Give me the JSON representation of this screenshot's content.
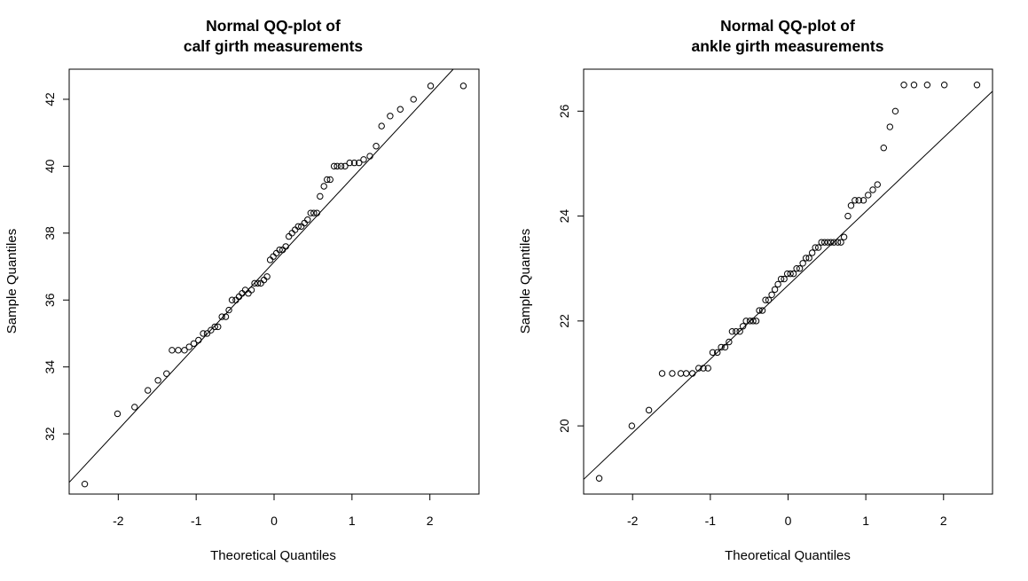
{
  "chart_data": [
    {
      "type": "scatter",
      "title_line1": "Normal QQ-plot of",
      "title_line2": "calf girth measurements",
      "xlabel": "Theoretical Quantiles",
      "ylabel": "Sample Quantiles",
      "xlim": [
        -2.63,
        2.63
      ],
      "ylim": [
        30.2,
        42.9
      ],
      "x_ticks": [
        -2,
        -1,
        0,
        1,
        2
      ],
      "y_ticks": [
        32,
        34,
        36,
        38,
        40,
        42
      ],
      "reference_line": {
        "x": [
          -2.63,
          2.3
        ],
        "y": [
          30.55,
          42.9
        ]
      },
      "grid": false,
      "legend": "none",
      "points": {
        "x": [
          -2.43,
          -2.01,
          -1.79,
          -1.62,
          -1.49,
          -1.38,
          -1.31,
          -1.23,
          -1.15,
          -1.09,
          -1.03,
          -0.97,
          -0.91,
          -0.86,
          -0.81,
          -0.76,
          -0.72,
          -0.67,
          -0.62,
          -0.58,
          -0.54,
          -0.49,
          -0.45,
          -0.41,
          -0.37,
          -0.33,
          -0.29,
          -0.25,
          -0.21,
          -0.17,
          -0.13,
          -0.09,
          -0.05,
          -0.01,
          0.03,
          0.07,
          0.11,
          0.15,
          0.19,
          0.23,
          0.27,
          0.31,
          0.35,
          0.39,
          0.43,
          0.47,
          0.51,
          0.55,
          0.59,
          0.64,
          0.68,
          0.72,
          0.77,
          0.81,
          0.86,
          0.91,
          0.97,
          1.03,
          1.09,
          1.15,
          1.23,
          1.31,
          1.38,
          1.49,
          1.62,
          1.79,
          2.01,
          2.43
        ],
        "y": [
          30.5,
          32.6,
          32.8,
          33.3,
          33.6,
          33.8,
          34.5,
          34.5,
          34.5,
          34.6,
          34.7,
          34.8,
          35.0,
          35.0,
          35.1,
          35.2,
          35.2,
          35.5,
          35.5,
          35.7,
          36.0,
          36.0,
          36.1,
          36.2,
          36.3,
          36.2,
          36.3,
          36.5,
          36.5,
          36.5,
          36.6,
          36.7,
          37.2,
          37.3,
          37.4,
          37.5,
          37.5,
          37.6,
          37.9,
          38.0,
          38.1,
          38.2,
          38.2,
          38.3,
          38.4,
          38.6,
          38.6,
          38.6,
          39.1,
          39.4,
          39.6,
          39.6,
          40.0,
          40.0,
          40.0,
          40.0,
          40.1,
          40.1,
          40.1,
          40.2,
          40.3,
          40.6,
          41.2,
          41.5,
          41.7,
          42.0,
          42.4,
          42.4
        ]
      }
    },
    {
      "type": "scatter",
      "title_line1": "Normal QQ-plot of",
      "title_line2": "ankle girth measurements",
      "xlabel": "Theoretical Quantiles",
      "ylabel": "Sample Quantiles",
      "xlim": [
        -2.63,
        2.63
      ],
      "ylim": [
        18.7,
        26.8
      ],
      "x_ticks": [
        -2,
        -1,
        0,
        1,
        2
      ],
      "y_ticks": [
        20,
        22,
        24,
        26
      ],
      "reference_line": {
        "x": [
          -2.63,
          2.63
        ],
        "y": [
          18.98,
          26.38
        ]
      },
      "grid": false,
      "legend": "none",
      "points": {
        "x": [
          -2.43,
          -2.01,
          -1.79,
          -1.62,
          -1.49,
          -1.38,
          -1.31,
          -1.23,
          -1.15,
          -1.09,
          -1.03,
          -0.97,
          -0.91,
          -0.86,
          -0.81,
          -0.76,
          -0.72,
          -0.67,
          -0.62,
          -0.58,
          -0.54,
          -0.49,
          -0.45,
          -0.41,
          -0.37,
          -0.33,
          -0.29,
          -0.25,
          -0.21,
          -0.17,
          -0.13,
          -0.09,
          -0.05,
          -0.01,
          0.03,
          0.07,
          0.11,
          0.15,
          0.19,
          0.23,
          0.27,
          0.31,
          0.35,
          0.39,
          0.43,
          0.47,
          0.51,
          0.55,
          0.59,
          0.64,
          0.68,
          0.72,
          0.77,
          0.81,
          0.86,
          0.91,
          0.97,
          1.03,
          1.09,
          1.15,
          1.23,
          1.31,
          1.38,
          1.49,
          1.62,
          1.79,
          2.01,
          2.43
        ],
        "y": [
          19.0,
          20.0,
          20.3,
          21.0,
          21.0,
          21.0,
          21.0,
          21.0,
          21.1,
          21.1,
          21.1,
          21.4,
          21.4,
          21.5,
          21.5,
          21.6,
          21.8,
          21.8,
          21.8,
          21.9,
          22.0,
          22.0,
          22.0,
          22.0,
          22.2,
          22.2,
          22.4,
          22.4,
          22.5,
          22.6,
          22.7,
          22.8,
          22.8,
          22.9,
          22.9,
          22.9,
          23.0,
          23.0,
          23.1,
          23.2,
          23.2,
          23.3,
          23.4,
          23.4,
          23.5,
          23.5,
          23.5,
          23.5,
          23.5,
          23.5,
          23.5,
          23.6,
          24.0,
          24.2,
          24.3,
          24.3,
          24.3,
          24.4,
          24.5,
          24.6,
          25.3,
          25.7,
          26.0,
          26.5,
          26.5,
          26.5,
          26.5,
          26.5
        ]
      }
    }
  ]
}
